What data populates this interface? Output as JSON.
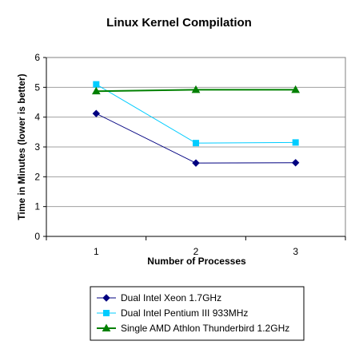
{
  "chart_data": {
    "type": "line",
    "title": "Linux Kernel Compilation",
    "xlabel": "Number of Processes",
    "ylabel": "Time in Minutes (lower is better)",
    "categories": [
      "1",
      "2",
      "3"
    ],
    "ylim": [
      0,
      6
    ],
    "yticks": [
      "0",
      "1",
      "2",
      "3",
      "4",
      "5",
      "6"
    ],
    "grid": true,
    "legend_position": "bottom",
    "series": [
      {
        "name": "Dual Intel Xeon 1.7GHz",
        "values": [
          4.12,
          2.46,
          2.47
        ],
        "color": "#000080",
        "marker": "diamond"
      },
      {
        "name": "Dual Intel Pentium III 933MHz",
        "values": [
          5.1,
          3.13,
          3.15
        ],
        "color": "#00ccff",
        "marker": "square"
      },
      {
        "name": "Single AMD Athlon Thunderbird 1.2GHz",
        "values": [
          4.87,
          4.92,
          4.92
        ],
        "color": "#008000",
        "marker": "triangle"
      }
    ]
  }
}
